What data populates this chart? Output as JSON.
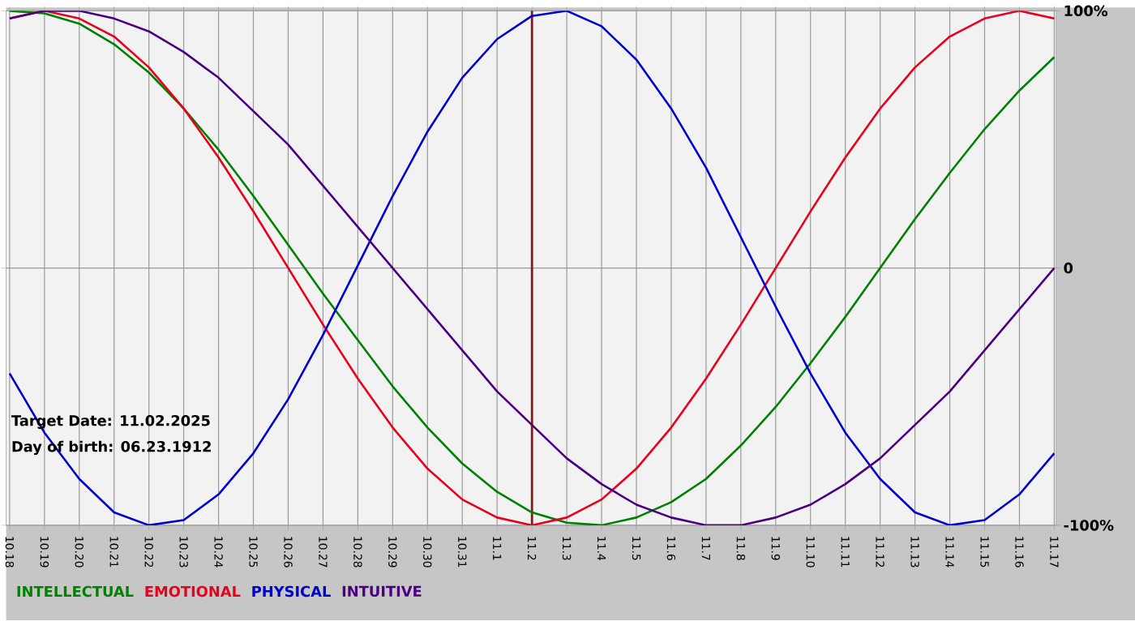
{
  "chart_data": {
    "type": "line",
    "categories": [
      "10.18",
      "10.19",
      "10.20",
      "10.21",
      "10.22",
      "10.23",
      "10.24",
      "10.25",
      "10.26",
      "10.27",
      "10.28",
      "10.29",
      "10.30",
      "10.31",
      "11.1",
      "11.2",
      "11.3",
      "11.4",
      "11.5",
      "11.6",
      "11.7",
      "11.8",
      "11.9",
      "11.10",
      "11.11",
      "11.12",
      "11.13",
      "11.14",
      "11.15",
      "11.16",
      "11.17"
    ],
    "series": [
      {
        "name": "INTELLECTUAL",
        "color": "#008000",
        "values": [
          100,
          99,
          95,
          87,
          76,
          62,
          46,
          28,
          9,
          -10,
          -28,
          -46,
          -62,
          -76,
          -87,
          -95,
          -99,
          -100,
          -97,
          -91,
          -82,
          -69,
          -54,
          -37,
          -19,
          0,
          19,
          37,
          54,
          69,
          82
        ]
      },
      {
        "name": "EMOTIONAL",
        "color": "#e8001c",
        "values": [
          97,
          100,
          97,
          90,
          78,
          62,
          43,
          22,
          0,
          -22,
          -43,
          -62,
          -78,
          -90,
          -97,
          -100,
          -97,
          -90,
          -78,
          -62,
          -43,
          -22,
          0,
          22,
          43,
          62,
          78,
          90,
          97,
          100,
          97
        ]
      },
      {
        "name": "PHYSICAL",
        "color": "#0000d0",
        "values": [
          -41,
          -64,
          -82,
          -95,
          -100,
          -98,
          -88,
          -72,
          -51,
          -26,
          1,
          28,
          53,
          74,
          89,
          98,
          100,
          94,
          81,
          62,
          39,
          12,
          -15,
          -41,
          -64,
          -82,
          -95,
          -100,
          -98,
          -88,
          -72
        ]
      },
      {
        "name": "INTUITIVE",
        "color": "#4b0082",
        "values": [
          97,
          100,
          100,
          97,
          92,
          84,
          74,
          61,
          48,
          32,
          16,
          0,
          -16,
          -32,
          -48,
          -61,
          -74,
          -84,
          -92,
          -97,
          -100,
          -100,
          -97,
          -92,
          -84,
          -74,
          -61,
          -48,
          -32,
          -16,
          0
        ]
      }
    ],
    "ylim": [
      -100,
      100
    ],
    "yticks": [
      {
        "value": 100,
        "label": "100%"
      },
      0,
      {
        "value": -100,
        "label": "-100%"
      }
    ],
    "grid": true,
    "legend": "bottom",
    "ref_lines": [
      {
        "axis": "x",
        "value": "11.2",
        "color": "#8b1a1a"
      }
    ],
    "annotations": [
      "Target Date: 11.02.2025",
      "Day of birth: 06.23.1912"
    ]
  }
}
